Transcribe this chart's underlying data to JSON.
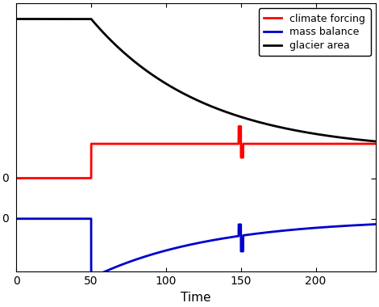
{
  "xlabel": "Time",
  "xlim": [
    0,
    240
  ],
  "xticks": [
    0,
    50,
    100,
    150,
    200
  ],
  "ylim": [
    -1.5,
    2.8
  ],
  "climate_color": "#ff0000",
  "mass_color": "#0000cc",
  "glacier_color": "#000000",
  "lw": 2.0,
  "legend_labels": [
    "climate forcing",
    "mass balance",
    "glacier area"
  ],
  "t_step": 50,
  "t_spike": 150,
  "t_end": 240,
  "climate_baseline": 0.0,
  "climate_step": 0.55,
  "mass_baseline": 0.0,
  "mass_min": -0.95,
  "mass_tau": 80,
  "glacier_high": 2.55,
  "glacier_low": 0.42,
  "glacier_tau": 75,
  "zero_climate_y": 0.0,
  "zero_mass_y": -0.65,
  "spike_red_up": 0.28,
  "spike_red_dn": -0.22,
  "spike_blue_up": 0.18,
  "spike_blue_dn": -0.25,
  "background_color": "#ffffff"
}
